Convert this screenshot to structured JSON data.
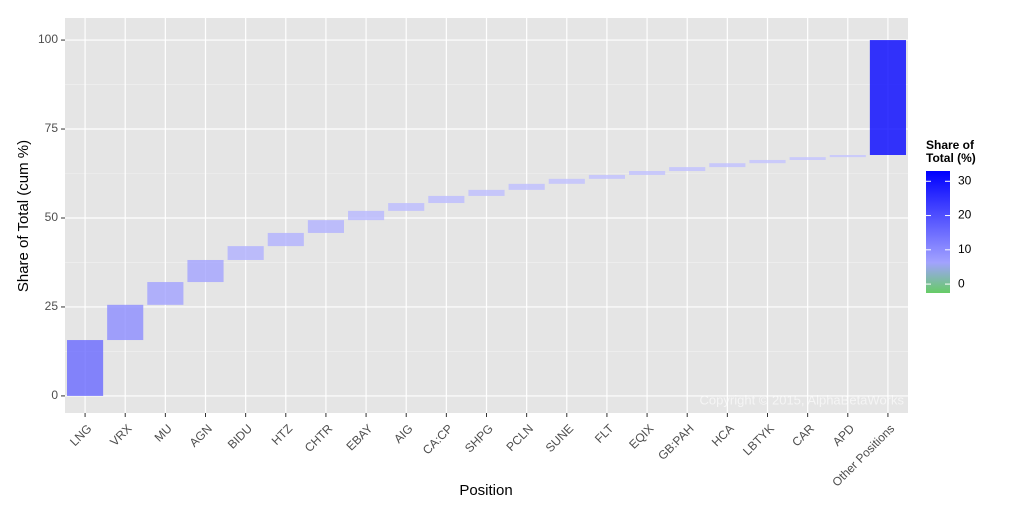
{
  "chart_data": {
    "type": "waterfall",
    "x_label": "Position",
    "y_label": "Share of Total (cum %)",
    "categories": [
      "LNG",
      "VRX",
      "MU",
      "AGN",
      "BIDU",
      "HTZ",
      "CHTR",
      "EBAY",
      "AIG",
      "CA:CP",
      "SHPG",
      "PCLN",
      "SUNE",
      "FLT",
      "EQIX",
      "GB:PAH",
      "HCA",
      "LBTYK",
      "CAR",
      "APD",
      "Other Positions"
    ],
    "values": [
      15.7,
      9.9,
      6.4,
      6.2,
      3.9,
      3.7,
      3.6,
      2.6,
      2.2,
      2.0,
      1.7,
      1.7,
      1.4,
      1.1,
      1.1,
      1.1,
      1.1,
      0.9,
      0.8,
      0.6,
      32.3
    ],
    "ylim": [
      -4.8,
      106.2
    ],
    "yticks": [
      0,
      25,
      50,
      75,
      100
    ],
    "grid": true,
    "legend_title": "Share of Total (%)",
    "legend_lim": [
      -2.6,
      33
    ],
    "legend_ticks": [
      0,
      10,
      20,
      30
    ],
    "color_scale": {
      "low": "#66cc66",
      "mid": "#c8c8ff",
      "high": "#0000ff",
      "midpoint": 0
    },
    "annotation": "Copyright © 2015, AlphaBetaWorks"
  }
}
